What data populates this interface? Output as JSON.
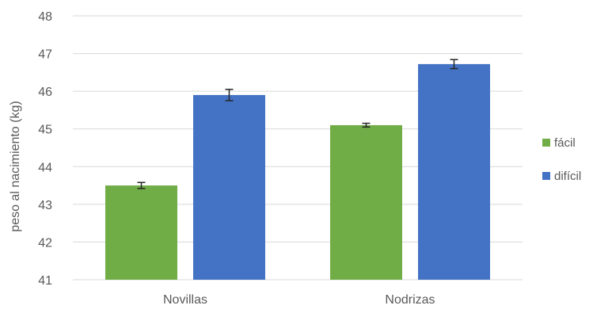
{
  "chart_data": {
    "type": "bar",
    "categories": [
      "Novillas",
      "Nodrizas"
    ],
    "series": [
      {
        "name": "fácil",
        "color": "#70ad47",
        "values": [
          43.5,
          45.1
        ],
        "errors": [
          0.08,
          0.05
        ]
      },
      {
        "name": "difícil",
        "color": "#4472c4",
        "values": [
          45.9,
          46.72
        ],
        "errors": [
          0.15,
          0.12
        ]
      }
    ],
    "ylabel": "peso al nacimiento (kg)",
    "xlabel": "",
    "ylim": [
      41,
      48
    ],
    "yticks": [
      41,
      42,
      43,
      44,
      45,
      46,
      47,
      48
    ],
    "grid": true,
    "legend_position": "right"
  }
}
